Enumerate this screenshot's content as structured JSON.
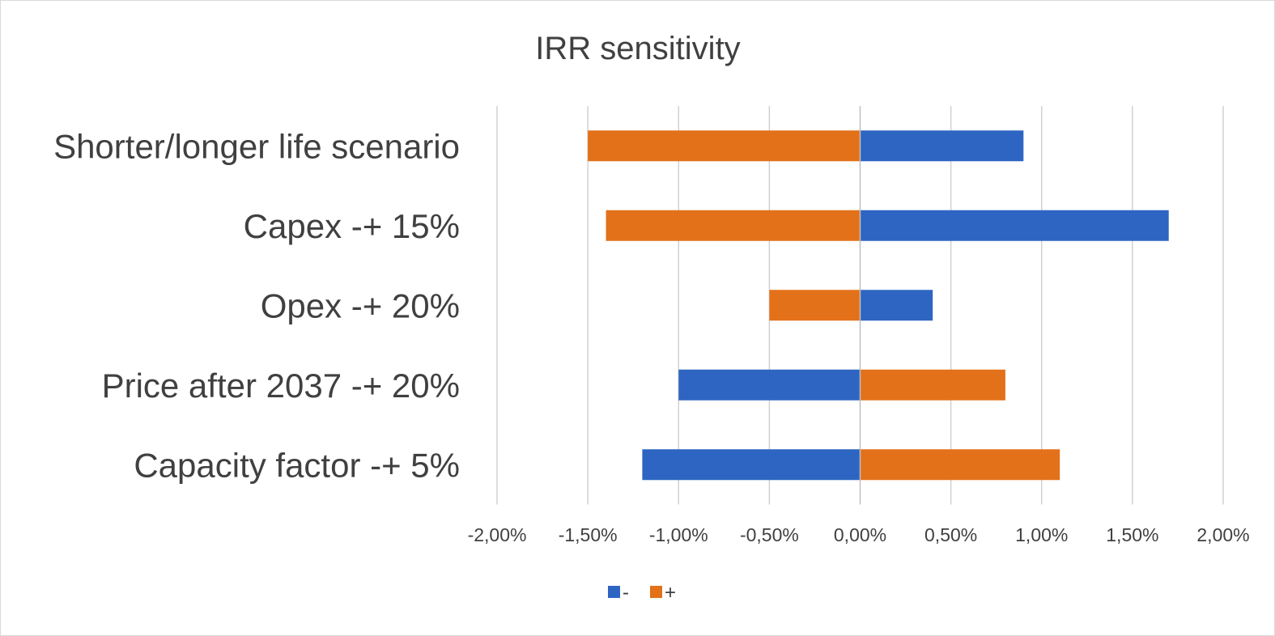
{
  "chart_data": {
    "type": "bar",
    "orientation": "horizontal",
    "title": "IRR sensitivity",
    "xlabel": "",
    "ylabel": "",
    "categories": [
      "Shorter/longer life scenario",
      "Capex -+ 15%",
      "Opex -+ 20%",
      "Price after 2037 -+ 20%",
      "Capacity factor -+ 5%"
    ],
    "series": [
      {
        "name": "-",
        "color": "#2e65c2",
        "values": [
          0.009,
          0.017,
          0.004,
          -0.01,
          -0.012
        ]
      },
      {
        "name": "+",
        "color": "#e3711a",
        "values": [
          -0.015,
          -0.014,
          -0.005,
          0.008,
          0.011
        ]
      }
    ],
    "xlim": [
      -0.02,
      0.02
    ],
    "x_ticks": [
      -0.02,
      -0.015,
      -0.01,
      -0.005,
      0,
      0.005,
      0.01,
      0.015,
      0.02
    ],
    "x_tick_labels": [
      "-2,00%",
      "-1,50%",
      "-1,00%",
      "-0,50%",
      "0,00%",
      "0,50%",
      "1,00%",
      "1,50%",
      "2,00%"
    ],
    "grid": true,
    "legend": "bottom"
  }
}
